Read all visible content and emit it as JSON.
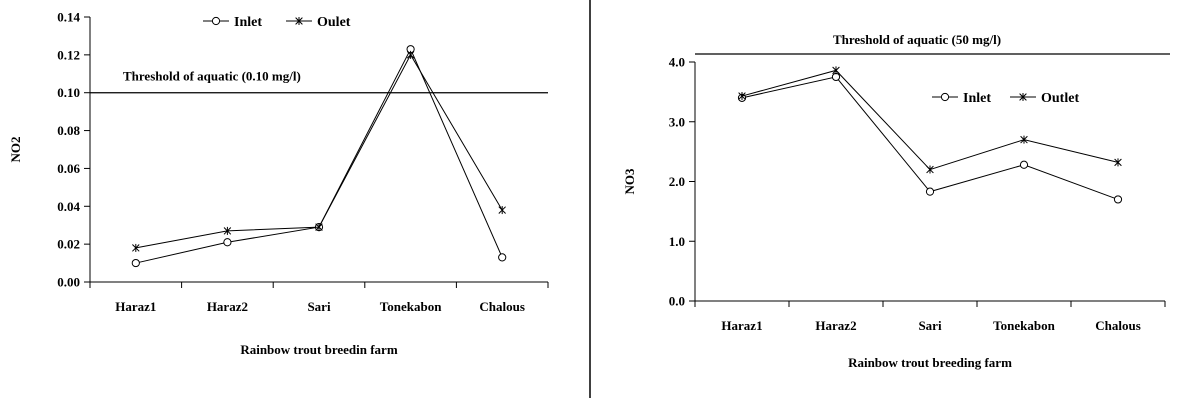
{
  "chart_data": [
    {
      "type": "line",
      "title": "",
      "categories": [
        "Haraz1",
        "Haraz2",
        "Sari",
        "Tonekabon",
        "Chalous"
      ],
      "series": [
        {
          "name": "Inlet",
          "marker": "circle",
          "values": [
            0.01,
            0.021,
            0.029,
            0.123,
            0.013
          ]
        },
        {
          "name": "Oulet",
          "marker": "asterisk",
          "values": [
            0.018,
            0.027,
            0.029,
            0.12,
            0.038
          ]
        }
      ],
      "xlabel": "Rainbow trout breedin farm",
      "ylabel": "NO2",
      "ylim": [
        0,
        0.14
      ],
      "yticks": [
        "0.00",
        "0.02",
        "0.04",
        "0.06",
        "0.08",
        "0.10",
        "0.12",
        "0.14"
      ],
      "threshold": {
        "value": 0.1,
        "label": "Threshold of aquatic (0.10 mg/l)"
      },
      "legend": "top-center",
      "grid": false
    },
    {
      "type": "line",
      "title": "Threshold of aquatic (50 mg/l)",
      "categories": [
        "Haraz1",
        "Haraz2",
        "Sari",
        "Tonekabon",
        "Chalous"
      ],
      "series": [
        {
          "name": "Inlet",
          "marker": "circle",
          "values": [
            3.4,
            3.75,
            1.83,
            2.28,
            1.7
          ]
        },
        {
          "name": "Outlet",
          "marker": "asterisk",
          "values": [
            3.43,
            3.86,
            2.2,
            2.7,
            2.32
          ]
        }
      ],
      "xlabel": "Rainbow trout breeding farm",
      "ylabel": "NO3",
      "ylim": [
        0,
        4
      ],
      "yticks": [
        "0.0",
        "1.0",
        "2.0",
        "3.0",
        "4.0"
      ],
      "legend": "top-right",
      "grid": false
    }
  ]
}
